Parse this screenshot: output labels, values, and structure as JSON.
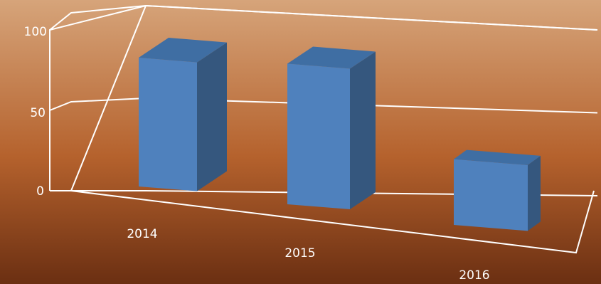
{
  "chart_data": {
    "type": "bar",
    "categories": [
      "2014",
      "2015",
      "2016"
    ],
    "values": [
      83,
      83,
      42
    ],
    "ylim": [
      0,
      100
    ],
    "yticks": [
      "0",
      "50",
      "100"
    ],
    "grid": true,
    "three_d": true,
    "legend": "none"
  },
  "colors": {
    "background_top": "#d6a47a",
    "background_bottom": "#6b2f12",
    "bar_front": "#4f81bd",
    "bar_side": "#35577e",
    "bar_top": "#3f6ea3",
    "axis": "#ffffff"
  }
}
